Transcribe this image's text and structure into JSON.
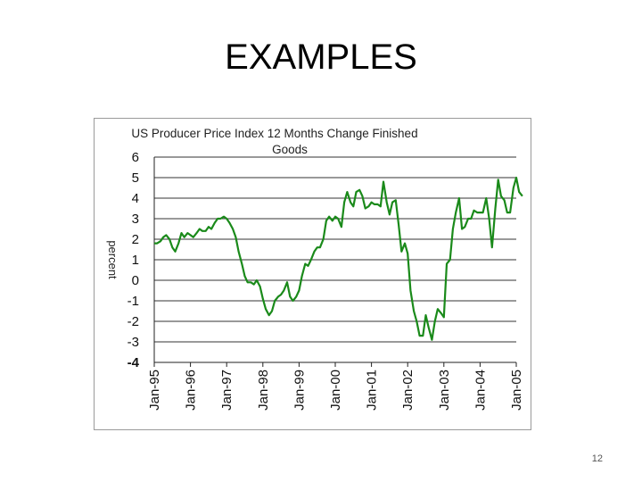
{
  "slide": {
    "title": "EXAMPLES",
    "page_number": "12"
  },
  "chart_data": {
    "type": "line",
    "title": "US Producer Price Index 12 Months Change    Finished Goods",
    "title_lines": [
      "US Producer Price Index 12 Months Change    Finished",
      "Goods"
    ],
    "xlabel": "",
    "ylabel": "percent",
    "ylim": [
      -4,
      6
    ],
    "yticks": [
      6,
      5,
      4,
      3,
      2,
      1,
      0,
      -1,
      -2,
      -3,
      -4
    ],
    "xlim": [
      1995.0,
      2005.0
    ],
    "xticks": [
      {
        "label": "Jan-95",
        "year": 1995
      },
      {
        "label": "Jan-96",
        "year": 1996
      },
      {
        "label": "Jan-97",
        "year": 1997
      },
      {
        "label": "Jan-98",
        "year": 1998
      },
      {
        "label": "Jan-99",
        "year": 1999
      },
      {
        "label": "Jan-00",
        "year": 2000
      },
      {
        "label": "Jan-01",
        "year": 2001
      },
      {
        "label": "Jan-02",
        "year": 2002
      },
      {
        "label": "Jan-03",
        "year": 2003
      },
      {
        "label": "Jan-04",
        "year": 2004
      },
      {
        "label": "Jan-05",
        "year": 2005
      }
    ],
    "grid": true,
    "legend": "none",
    "line_color": "#1a8a1a",
    "series": [
      {
        "points": [
          [
            1995.0,
            1.8
          ],
          [
            1995.08,
            1.8
          ],
          [
            1995.17,
            1.9
          ],
          [
            1995.25,
            2.1
          ],
          [
            1995.33,
            2.2
          ],
          [
            1995.42,
            2.0
          ],
          [
            1995.5,
            1.6
          ],
          [
            1995.58,
            1.4
          ],
          [
            1995.67,
            1.8
          ],
          [
            1995.75,
            2.3
          ],
          [
            1995.83,
            2.1
          ],
          [
            1995.92,
            2.3
          ],
          [
            1996.0,
            2.2
          ],
          [
            1996.08,
            2.1
          ],
          [
            1996.17,
            2.3
          ],
          [
            1996.25,
            2.5
          ],
          [
            1996.33,
            2.4
          ],
          [
            1996.42,
            2.4
          ],
          [
            1996.5,
            2.6
          ],
          [
            1996.58,
            2.5
          ],
          [
            1996.67,
            2.8
          ],
          [
            1996.75,
            3.0
          ],
          [
            1996.83,
            3.0
          ],
          [
            1996.92,
            3.1
          ],
          [
            1997.0,
            3.0
          ],
          [
            1997.08,
            2.8
          ],
          [
            1997.17,
            2.5
          ],
          [
            1997.25,
            2.1
          ],
          [
            1997.33,
            1.4
          ],
          [
            1997.42,
            0.8
          ],
          [
            1997.5,
            0.2
          ],
          [
            1997.58,
            -0.1
          ],
          [
            1997.67,
            -0.1
          ],
          [
            1997.75,
            -0.2
          ],
          [
            1997.83,
            0.0
          ],
          [
            1997.92,
            -0.3
          ],
          [
            1998.0,
            -0.9
          ],
          [
            1998.08,
            -1.4
          ],
          [
            1998.17,
            -1.7
          ],
          [
            1998.25,
            -1.5
          ],
          [
            1998.33,
            -1.0
          ],
          [
            1998.42,
            -0.8
          ],
          [
            1998.5,
            -0.7
          ],
          [
            1998.58,
            -0.5
          ],
          [
            1998.67,
            -0.1
          ],
          [
            1998.75,
            -0.8
          ],
          [
            1998.83,
            -1.0
          ],
          [
            1998.92,
            -0.8
          ],
          [
            1999.0,
            -0.5
          ],
          [
            1999.08,
            0.2
          ],
          [
            1999.17,
            0.8
          ],
          [
            1999.25,
            0.7
          ],
          [
            1999.33,
            1.0
          ],
          [
            1999.42,
            1.4
          ],
          [
            1999.5,
            1.6
          ],
          [
            1999.58,
            1.6
          ],
          [
            1999.67,
            2.0
          ],
          [
            1999.75,
            2.9
          ],
          [
            1999.83,
            3.1
          ],
          [
            1999.92,
            2.9
          ],
          [
            2000.0,
            3.1
          ],
          [
            2000.08,
            3.0
          ],
          [
            2000.17,
            2.6
          ],
          [
            2000.25,
            3.8
          ],
          [
            2000.33,
            4.3
          ],
          [
            2000.42,
            3.8
          ],
          [
            2000.5,
            3.6
          ],
          [
            2000.58,
            4.3
          ],
          [
            2000.67,
            4.4
          ],
          [
            2000.75,
            4.1
          ],
          [
            2000.83,
            3.5
          ],
          [
            2000.92,
            3.6
          ],
          [
            2001.0,
            3.8
          ],
          [
            2001.08,
            3.7
          ],
          [
            2001.17,
            3.7
          ],
          [
            2001.25,
            3.6
          ],
          [
            2001.33,
            4.8
          ],
          [
            2001.42,
            3.8
          ],
          [
            2001.5,
            3.2
          ],
          [
            2001.58,
            3.8
          ],
          [
            2001.67,
            3.9
          ],
          [
            2001.75,
            2.7
          ],
          [
            2001.83,
            1.4
          ],
          [
            2001.92,
            1.8
          ],
          [
            2002.0,
            1.3
          ],
          [
            2002.08,
            -0.5
          ],
          [
            2002.17,
            -1.5
          ],
          [
            2002.25,
            -2.0
          ],
          [
            2002.33,
            -2.7
          ],
          [
            2002.42,
            -2.7
          ],
          [
            2002.5,
            -1.7
          ],
          [
            2002.58,
            -2.3
          ],
          [
            2002.67,
            -2.9
          ],
          [
            2002.75,
            -2.0
          ],
          [
            2002.83,
            -1.4
          ],
          [
            2002.92,
            -1.6
          ],
          [
            2003.0,
            -1.8
          ],
          [
            2003.08,
            0.8
          ],
          [
            2003.17,
            1.0
          ],
          [
            2003.25,
            2.5
          ],
          [
            2003.33,
            3.3
          ],
          [
            2003.42,
            4.0
          ],
          [
            2003.5,
            2.5
          ],
          [
            2003.58,
            2.6
          ],
          [
            2003.67,
            3.0
          ],
          [
            2003.75,
            3.0
          ],
          [
            2003.83,
            3.4
          ],
          [
            2003.92,
            3.3
          ],
          [
            2004.0,
            3.3
          ],
          [
            2004.08,
            3.3
          ],
          [
            2004.17,
            4.0
          ],
          [
            2004.25,
            3.0
          ],
          [
            2004.33,
            1.6
          ],
          [
            2004.42,
            3.5
          ],
          [
            2004.5,
            4.9
          ],
          [
            2004.58,
            4.1
          ],
          [
            2004.67,
            3.9
          ],
          [
            2004.75,
            3.3
          ],
          [
            2004.83,
            3.3
          ],
          [
            2004.92,
            4.5
          ],
          [
            2005.0,
            5.0
          ],
          [
            2005.08,
            4.3
          ],
          [
            2005.17,
            4.1
          ]
        ]
      }
    ]
  }
}
